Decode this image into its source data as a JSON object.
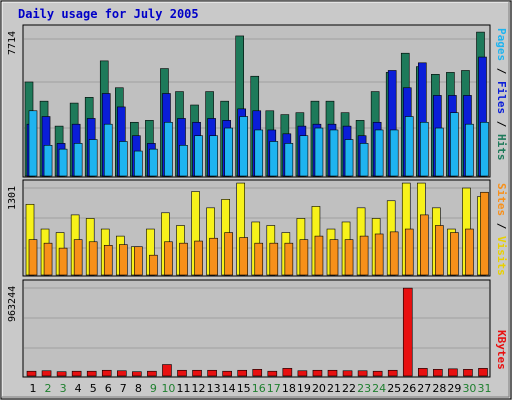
{
  "title": "Daily usage for July 2005",
  "colors": {
    "hits": "#1e7a5a",
    "files": "#0a1ed8",
    "pages": "#1eb4f0",
    "visits": "#f7f21a",
    "sites": "#f7901a",
    "kbytes": "#e81010",
    "weekend_label": "#208030",
    "weekday_label": "#000000",
    "title": "#0000c8",
    "plot_bg": "#c0c0c0"
  },
  "legend": {
    "top": {
      "pages": "Pages",
      "sep1": " / ",
      "files": "Files",
      "sep2": " / ",
      "hits": "Hits"
    },
    "middle": {
      "sites": "Sites",
      "sep": " / ",
      "visits": "Visits"
    },
    "bottom": {
      "kbytes": "KBytes"
    }
  },
  "chart_data": {
    "type": "bar",
    "title": "Daily usage for July 2005",
    "categories": [
      "1",
      "2",
      "3",
      "4",
      "5",
      "6",
      "7",
      "8",
      "9",
      "10",
      "11",
      "12",
      "13",
      "14",
      "15",
      "16",
      "17",
      "18",
      "19",
      "20",
      "21",
      "22",
      "23",
      "24",
      "25",
      "26",
      "27",
      "28",
      "29",
      "30",
      "31"
    ],
    "weekend_days": [
      "2",
      "3",
      "9",
      "10",
      "16",
      "17",
      "23",
      "24",
      "30",
      "31"
    ],
    "panels": [
      {
        "name": "hits-files-pages",
        "ymax_label": "7714",
        "ylim": [
          0,
          7714
        ],
        "series": [
          {
            "name": "Hits",
            "values": [
              4900,
              3900,
              2600,
              3800,
              4100,
              6000,
              4600,
              2800,
              2900,
              5600,
              4400,
              3700,
              4400,
              3900,
              7300,
              5200,
              3400,
              3200,
              3300,
              3900,
              3900,
              3300,
              2900,
              4400,
              5400,
              6400,
              5700,
              5300,
              5400,
              5500,
              7500
            ]
          },
          {
            "name": "Files",
            "values": [
              2700,
              3100,
              1700,
              2700,
              3000,
              4300,
              3600,
              2100,
              1700,
              4300,
              3000,
              2800,
              3000,
              2900,
              3500,
              3400,
              2400,
              2200,
              2600,
              2700,
              2700,
              2600,
              2100,
              2800,
              5500,
              4600,
              5900,
              4200,
              4200,
              4200,
              6200
            ]
          },
          {
            "name": "Pages",
            "values": [
              3400,
              1600,
              1400,
              1700,
              1900,
              2700,
              1800,
              1300,
              1400,
              2800,
              1600,
              2100,
              2100,
              2500,
              3100,
              2400,
              1800,
              1700,
              2100,
              2500,
              2400,
              1900,
              1700,
              2400,
              2400,
              3100,
              2800,
              2500,
              3300,
              2700,
              2800
            ]
          }
        ]
      },
      {
        "name": "visits-sites",
        "ymax_label": "1301",
        "ylim": [
          0,
          1301
        ],
        "series": [
          {
            "name": "Visits",
            "values": [
              1000,
              650,
              600,
              850,
              800,
              650,
              550,
              400,
              650,
              880,
              700,
              1180,
              950,
              1070,
              1300,
              750,
              700,
              600,
              800,
              970,
              650,
              750,
              950,
              800,
              1050,
              1300,
              1300,
              950,
              650,
              1230,
              1110
            ]
          },
          {
            "name": "Sites",
            "values": [
              500,
              450,
              380,
              500,
              470,
              420,
              430,
              400,
              280,
              470,
              450,
              480,
              520,
              600,
              530,
              450,
              450,
              450,
              500,
              550,
              500,
              500,
              550,
              580,
              610,
              650,
              850,
              700,
              600,
              650,
              1170
            ]
          }
        ]
      },
      {
        "name": "kbytes",
        "ymax_label": "963244",
        "ylim": [
          0,
          963244
        ],
        "series": [
          {
            "name": "KBytes",
            "values": [
              50000,
              55000,
              45000,
              50000,
              50000,
              60000,
              55000,
              45000,
              50000,
              120000,
              60000,
              60000,
              60000,
              50000,
              60000,
              70000,
              50000,
              80000,
              55000,
              60000,
              60000,
              55000,
              55000,
              50000,
              60000,
              920000,
              80000,
              70000,
              75000,
              70000,
              80000
            ]
          }
        ]
      }
    ]
  }
}
